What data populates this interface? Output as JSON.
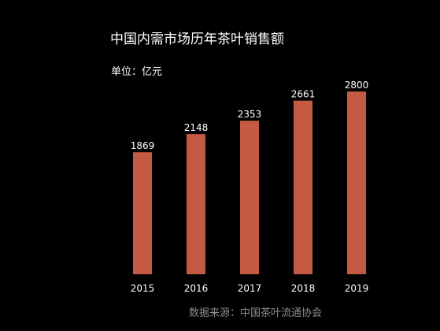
{
  "chart_data": {
    "type": "bar",
    "title": "中国内需市场历年茶叶销售额",
    "unit_label": "单位：亿元",
    "source": "数据来源：中国茶叶流通协会",
    "categories": [
      "2015",
      "2016",
      "2017",
      "2018",
      "2019"
    ],
    "values": [
      1869,
      2148,
      2353,
      2661,
      2800
    ],
    "data_labels": [
      "1869",
      "2148",
      "2353",
      "2661",
      "2800"
    ],
    "ylim": [
      0,
      2850
    ],
    "grid": false,
    "legend": "none",
    "bar_color": "#c55a44",
    "background_color": "#000000",
    "text_color": "#ffffff",
    "source_color": "#8c8c8c"
  }
}
